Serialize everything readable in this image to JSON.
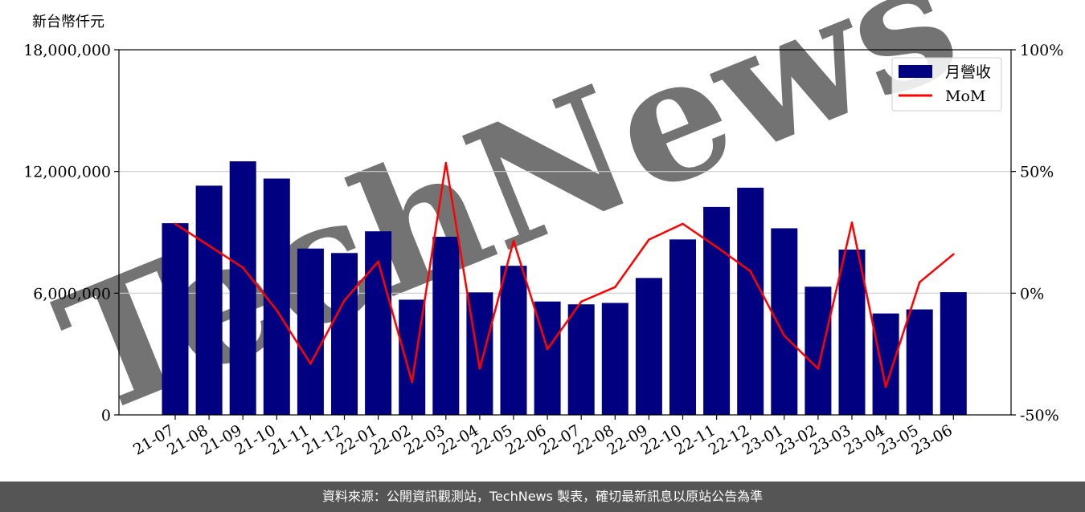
{
  "chart_data": {
    "type": "bar",
    "y_unit_label": "新台幣仟元",
    "categories": [
      "21-07",
      "21-08",
      "21-09",
      "21-10",
      "21-11",
      "21-12",
      "22-01",
      "22-02",
      "22-03",
      "22-04",
      "22-05",
      "22-06",
      "22-07",
      "22-08",
      "22-09",
      "22-10",
      "22-11",
      "22-12",
      "23-01",
      "23-02",
      "23-03",
      "23-04",
      "23-05",
      "23-06"
    ],
    "series": [
      {
        "name": "月營收",
        "kind": "bar",
        "axis": "left",
        "color": "#000080",
        "values": [
          9450000,
          11300000,
          12500000,
          11650000,
          8200000,
          7980000,
          9050000,
          5680000,
          8780000,
          6040000,
          7350000,
          5590000,
          5450000,
          5520000,
          6750000,
          8650000,
          10250000,
          11200000,
          9200000,
          6320000,
          8150000,
          5000000,
          5200000,
          6050000
        ]
      },
      {
        "name": "MoM",
        "kind": "line",
        "axis": "right",
        "color": "#ff0000",
        "values": [
          28.5,
          19.5,
          10.5,
          -7,
          -29,
          -3,
          13,
          -36.5,
          53.5,
          -31,
          21.5,
          -23,
          -3.5,
          2.5,
          22,
          28.5,
          19,
          9,
          -17.5,
          -31,
          29,
          -38.5,
          4.5,
          16
        ]
      }
    ],
    "ylim_left": [
      0,
      18000000
    ],
    "yticks_left": [
      "0",
      "6,000,000",
      "12,000,000",
      "18,000,000"
    ],
    "ylim_right": [
      -50,
      100
    ],
    "yticks_right": [
      "-50%",
      "0%",
      "50%",
      "100%"
    ],
    "grid": "horizontal",
    "legend_position": "top-right",
    "watermark": "TechNews"
  },
  "footer": {
    "source_text": "資料來源：公開資訊觀測站，TechNews 製表，確切最新訊息以原站公告為準"
  }
}
